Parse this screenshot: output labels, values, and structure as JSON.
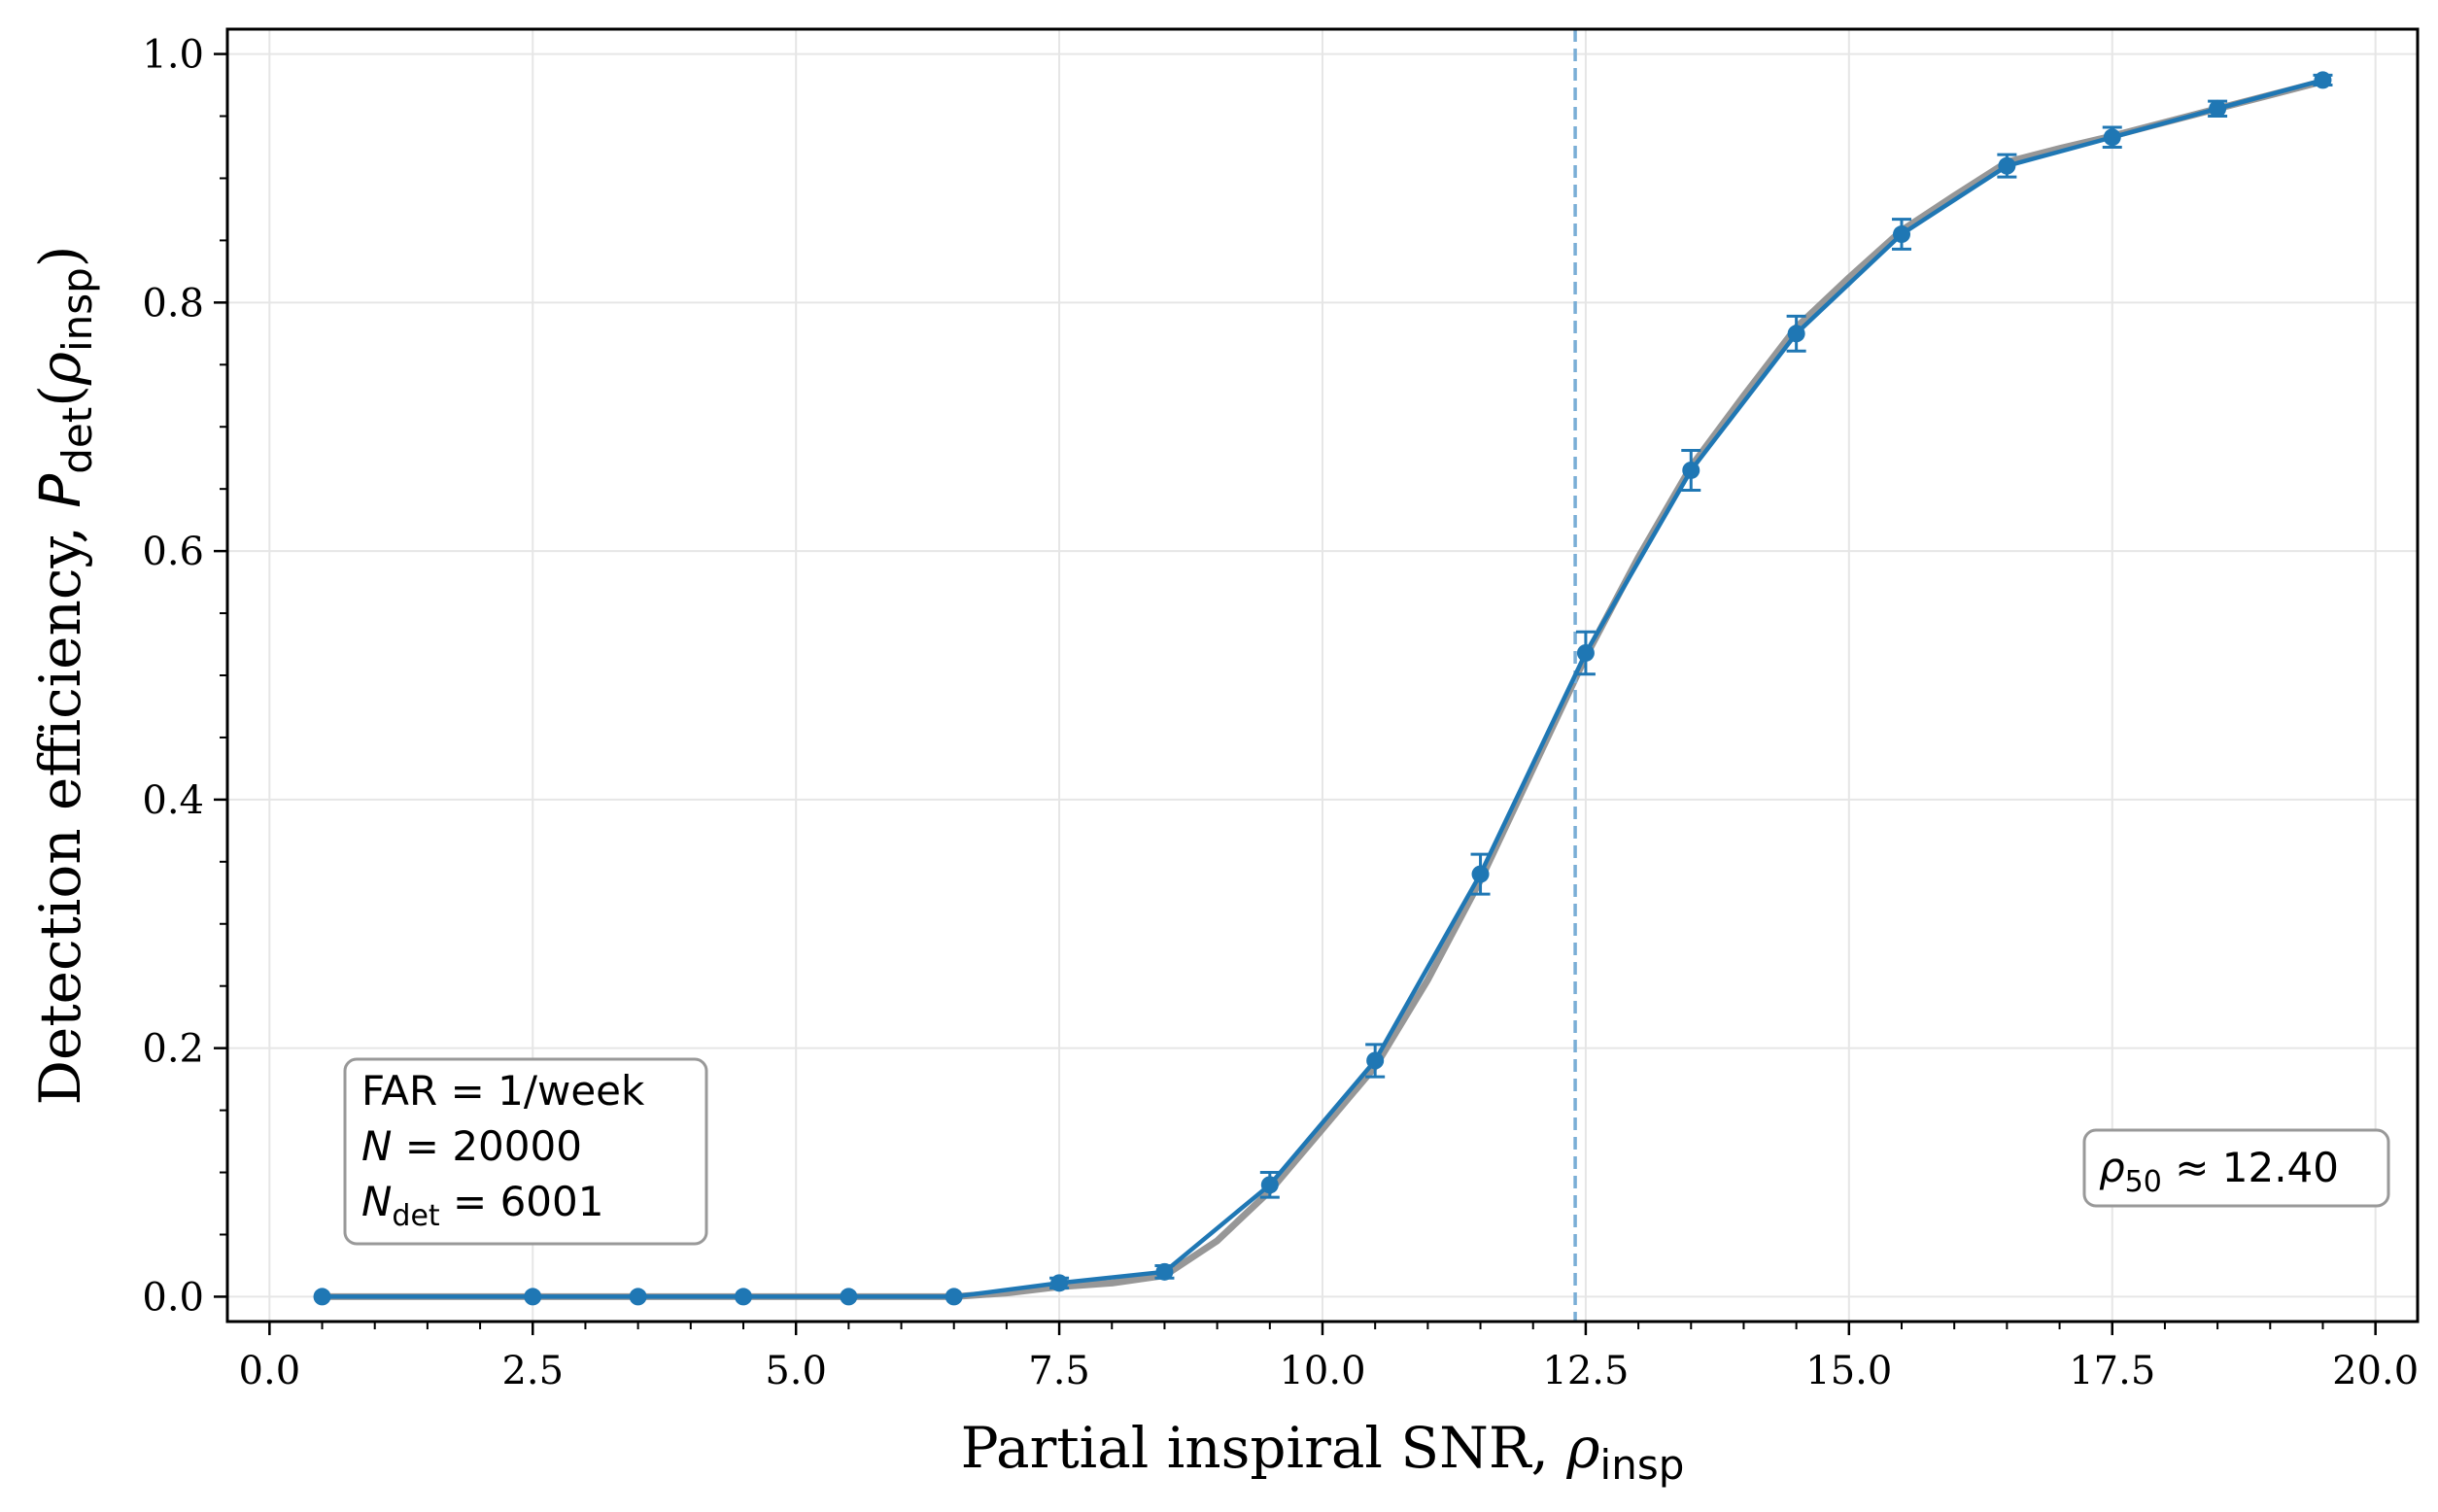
{
  "chart_data": {
    "type": "line",
    "x_axis": {
      "label_main": "Partial inspiral SNR, ",
      "label_sym": "ρ",
      "label_sub": "insp",
      "range": [
        -0.4,
        20.4
      ],
      "ticks": [
        "0.0",
        "2.5",
        "5.0",
        "7.5",
        "10.0",
        "12.5",
        "15.0",
        "17.5",
        "20.0"
      ]
    },
    "y_axis": {
      "label_main": "Detection efficiency, ",
      "label_P": "P",
      "label_P_sub": "det",
      "label_sym": "ρ",
      "label_sym_sub": "insp",
      "range": [
        -0.02,
        1.02
      ],
      "ticks": [
        "0.0",
        "0.2",
        "0.4",
        "0.6",
        "0.8",
        "1.0"
      ]
    },
    "grid": true,
    "series": [
      {
        "color": "#1f77b4",
        "x": [
          0.5,
          2.5,
          3.5,
          4.5,
          5.5,
          6.5,
          7.5,
          8.5,
          9.5,
          10.5,
          11.5,
          12.5,
          13.5,
          14.5,
          15.5,
          16.5,
          17.5,
          18.5,
          19.5
        ],
        "y": [
          0.0,
          0.0,
          0.0,
          0.0,
          0.0,
          0.0,
          0.011,
          0.02,
          0.09,
          0.19,
          0.34,
          0.518,
          0.665,
          0.775,
          0.855,
          0.91,
          0.933,
          0.956,
          0.979
        ],
        "yerr": [
          0.0,
          0.0,
          0.0,
          0.0,
          0.0,
          0.0,
          0.004,
          0.005,
          0.01,
          0.013,
          0.016,
          0.017,
          0.016,
          0.014,
          0.012,
          0.009,
          0.008,
          0.006,
          0.004
        ]
      }
    ],
    "fit_curve": {
      "color": "#8c8c8c",
      "description_visible": false,
      "x": [
        6.5,
        7.0,
        7.5,
        8.0,
        8.5,
        9.0,
        9.5,
        10.0,
        10.5,
        11.0,
        11.5,
        12.0,
        12.5,
        13.0,
        13.5,
        14.0,
        14.5,
        15.0,
        15.5,
        16.0,
        16.5,
        17.0,
        17.5,
        18.0,
        18.5,
        19.0,
        19.5
      ],
      "y": [
        0.0,
        0.003,
        0.008,
        0.011,
        0.017,
        0.045,
        0.085,
        0.135,
        0.185,
        0.255,
        0.335,
        0.425,
        0.515,
        0.595,
        0.668,
        0.725,
        0.78,
        0.82,
        0.858,
        0.886,
        0.913,
        0.924,
        0.934,
        0.945,
        0.956,
        0.967,
        0.978
      ]
    },
    "threshold_line": {
      "x": 12.4,
      "color": "#7aaed6",
      "style": "dashed"
    },
    "annotations": {
      "left_box": {
        "line1": "FAR = 1/week",
        "line2_sym": "N",
        "line2_val": " = 20000",
        "line3_sym": "N",
        "line3_sub": "det",
        "line3_val": " = 6001",
        "placement": "bottom-left"
      },
      "right_box": {
        "sym": "ρ",
        "sub": "50",
        "val": " ≈ 12.40",
        "placement": "bottom-right"
      }
    }
  }
}
